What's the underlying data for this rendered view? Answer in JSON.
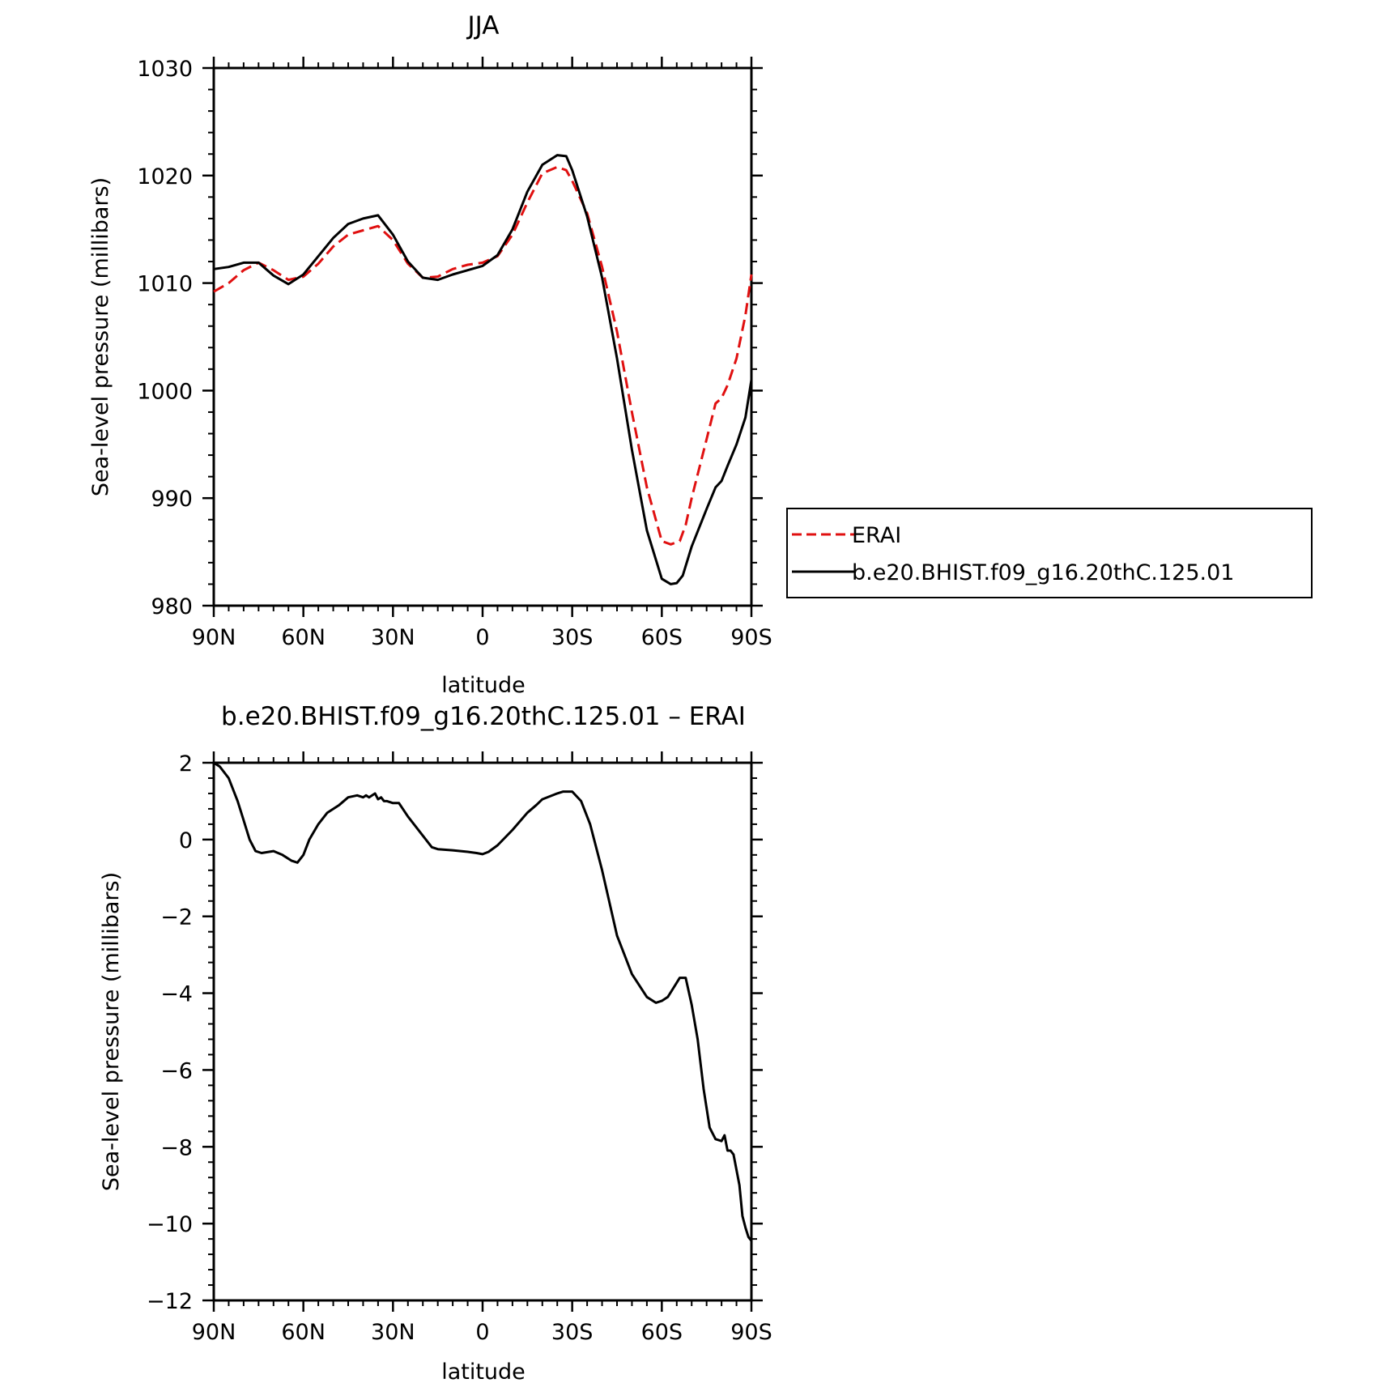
{
  "chart_data": [
    {
      "type": "line",
      "title": "JJA",
      "xlabel": "latitude",
      "ylabel": "Sea-level pressure (millibars)",
      "xlim": [
        90,
        -90
      ],
      "ylim": [
        980,
        1030
      ],
      "xticks": [
        90,
        60,
        30,
        0,
        -30,
        -60,
        -90
      ],
      "xtick_labels": [
        "90N",
        "60N",
        "30N",
        "0",
        "30S",
        "60S",
        "90S"
      ],
      "yticks": [
        980,
        990,
        1000,
        1010,
        1020,
        1030
      ],
      "ytick_labels": [
        "980",
        "990",
        "1000",
        "1010",
        "1020",
        "1030"
      ],
      "grid": false,
      "legend": {
        "placement": "right",
        "entries": [
          "ERAI",
          "b.e20.BHIST.f09_g16.20thC.125.01"
        ]
      },
      "series": [
        {
          "name": "ERAI",
          "color": "#e01010",
          "dash": "dashed",
          "x": [
            90,
            85,
            80,
            75,
            70,
            65,
            60,
            55,
            50,
            45,
            40,
            35,
            30,
            25,
            20,
            15,
            10,
            5,
            0,
            -5,
            -10,
            -15,
            -20,
            -25,
            -28,
            -30,
            -35,
            -40,
            -45,
            -50,
            -55,
            -60,
            -63,
            -66,
            -68,
            -70,
            -75,
            -78,
            -80,
            -82,
            -85,
            -88,
            -90
          ],
          "y": [
            1009.2,
            1010.0,
            1011.2,
            1011.9,
            1011.2,
            1010.3,
            1010.6,
            1011.8,
            1013.4,
            1014.5,
            1014.9,
            1015.3,
            1014.0,
            1011.8,
            1010.5,
            1010.6,
            1011.3,
            1011.7,
            1011.9,
            1012.5,
            1014.5,
            1017.5,
            1020.2,
            1020.8,
            1020.5,
            1019.5,
            1016.5,
            1011.5,
            1005.5,
            998.0,
            991.0,
            986.0,
            985.7,
            986.0,
            987.5,
            990.0,
            995.5,
            998.8,
            999.3,
            1000.5,
            1003.0,
            1007.0,
            1010.8
          ]
        },
        {
          "name": "b.e20.BHIST.f09_g16.20thC.125.01",
          "color": "#000000",
          "dash": "solid",
          "x": [
            90,
            85,
            80,
            75,
            70,
            65,
            60,
            55,
            50,
            45,
            40,
            35,
            30,
            25,
            20,
            15,
            10,
            5,
            0,
            -5,
            -10,
            -15,
            -20,
            -25,
            -28,
            -30,
            -35,
            -40,
            -45,
            -50,
            -55,
            -60,
            -63,
            -65,
            -67,
            -70,
            -75,
            -78,
            -80,
            -82,
            -85,
            -88,
            -90
          ],
          "y": [
            1011.3,
            1011.5,
            1011.9,
            1011.9,
            1010.7,
            1009.9,
            1010.8,
            1012.5,
            1014.2,
            1015.5,
            1016.0,
            1016.3,
            1014.5,
            1012.0,
            1010.5,
            1010.3,
            1010.8,
            1011.2,
            1011.6,
            1012.6,
            1015.0,
            1018.5,
            1021.0,
            1021.9,
            1021.8,
            1020.5,
            1016.2,
            1010.5,
            1003.0,
            994.5,
            987.0,
            982.5,
            982.0,
            982.1,
            982.8,
            985.5,
            989.0,
            991.0,
            991.6,
            993.0,
            995.0,
            997.5,
            1001.0
          ]
        }
      ]
    },
    {
      "type": "line",
      "title": "b.e20.BHIST.f09_g16.20thC.125.01 – ERAI",
      "xlabel": "latitude",
      "ylabel": "Sea-level pressure (millibars)",
      "xlim": [
        90,
        -90
      ],
      "ylim": [
        -12,
        2
      ],
      "xticks": [
        90,
        60,
        30,
        0,
        -30,
        -60,
        -90
      ],
      "xtick_labels": [
        "90N",
        "60N",
        "30N",
        "0",
        "30S",
        "60S",
        "90S"
      ],
      "yticks": [
        -12,
        -10,
        -8,
        -6,
        -4,
        -2,
        0,
        2
      ],
      "ytick_labels": [
        "−12",
        "−10",
        "−8",
        "−6",
        "−4",
        "−2",
        "0",
        "2"
      ],
      "grid": false,
      "series": [
        {
          "color": "#000000",
          "dash": "solid",
          "x": [
            90,
            88,
            85,
            82,
            80,
            78,
            76,
            74,
            70,
            67,
            64,
            62,
            60,
            58,
            55,
            52,
            48,
            45,
            42,
            40,
            39,
            38,
            36,
            35,
            34,
            33,
            32,
            30,
            28,
            25,
            20,
            17,
            15,
            10,
            5,
            2,
            0,
            -2,
            -5,
            -10,
            -15,
            -18,
            -20,
            -25,
            -27,
            -30,
            -33,
            -36,
            -40,
            -45,
            -50,
            -55,
            -58,
            -60,
            -62,
            -64,
            -66,
            -68,
            -70,
            -72,
            -74,
            -76,
            -78,
            -80,
            -81,
            -82,
            -83,
            -84,
            -86,
            -87,
            -88,
            -89,
            -90
          ],
          "y": [
            2.0,
            1.9,
            1.6,
            1.0,
            0.5,
            0.0,
            -0.3,
            -0.35,
            -0.3,
            -0.4,
            -0.55,
            -0.6,
            -0.4,
            0.0,
            0.4,
            0.7,
            0.9,
            1.1,
            1.15,
            1.1,
            1.15,
            1.1,
            1.2,
            1.05,
            1.1,
            1.0,
            1.0,
            0.95,
            0.95,
            0.6,
            0.1,
            -0.2,
            -0.25,
            -0.28,
            -0.32,
            -0.35,
            -0.38,
            -0.32,
            -0.15,
            0.25,
            0.7,
            0.9,
            1.05,
            1.2,
            1.25,
            1.25,
            1.0,
            0.4,
            -0.8,
            -2.5,
            -3.5,
            -4.1,
            -4.25,
            -4.2,
            -4.1,
            -3.85,
            -3.6,
            -3.6,
            -4.3,
            -5.2,
            -6.5,
            -7.5,
            -7.8,
            -7.85,
            -7.7,
            -8.1,
            -8.1,
            -8.2,
            -9.0,
            -9.8,
            -10.1,
            -10.35,
            -10.45
          ]
        }
      ]
    }
  ]
}
